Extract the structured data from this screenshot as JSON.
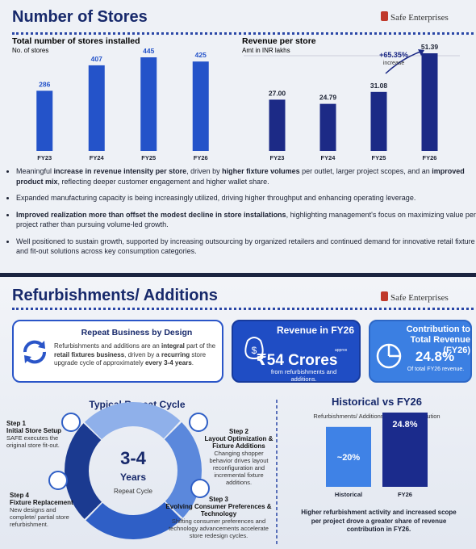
{
  "slide1": {
    "title": "Number of Stores",
    "logo": "Safe Enterprises"
  },
  "chart_data": [
    {
      "type": "bar",
      "title": "Total number of stores installed",
      "subtitle": "No. of stores",
      "categories": [
        "FY23",
        "FY24",
        "FY25",
        "FY26"
      ],
      "values": [
        286,
        407,
        445,
        425
      ],
      "color": "#2453c9"
    },
    {
      "type": "bar",
      "title": "Revenue per store",
      "subtitle": "Amt in INR lakhs",
      "categories": [
        "FY23",
        "FY24",
        "FY25",
        "FY26"
      ],
      "values": [
        27.0,
        24.79,
        31.08,
        51.39
      ],
      "value_labels": [
        "27.00",
        "24.79",
        "31.08",
        "51.39"
      ],
      "color": "#1c2a86",
      "annotation": {
        "text": "+65.35%",
        "subtext": "increase"
      }
    },
    {
      "type": "bar",
      "title": "Historical vs FY26",
      "subtitle": "Refurbishments/ Additions revenue contribution",
      "categories": [
        "Historical",
        "FY26"
      ],
      "values": [
        20,
        24.8
      ],
      "value_labels": [
        "~20%",
        "24.8%"
      ],
      "colors": [
        "#3f82e6",
        "#1b2b8c"
      ],
      "note": "Higher refurbishment activity and increased scope per project drove a greater share of revenue contribution in FY26."
    }
  ],
  "bullets": [
    [
      {
        "text": "Meaningful ",
        "bold": false
      },
      {
        "text": "increase in revenue intensity per store",
        "bold": true
      },
      {
        "text": ", driven by ",
        "bold": false
      },
      {
        "text": "higher fixture volumes",
        "bold": true
      },
      {
        "text": " per outlet, larger project scopes, and an ",
        "bold": false
      },
      {
        "text": "improved product mix",
        "bold": true
      },
      {
        "text": ", reflecting deeper customer engagement and higher wallet share.",
        "bold": false
      }
    ],
    [
      {
        "text": "Expanded manufacturing capacity is being increasingly utilized, driving higher throughput and enhancing operating leverage.",
        "bold": false
      }
    ],
    [
      {
        "text": "Improved realization more than offset the modest decline in store installations",
        "bold": true
      },
      {
        "text": ", highlighting management's focus on maximizing value per project rather than pursuing volume-led growth.",
        "bold": false
      }
    ],
    [
      {
        "text": "Well positioned to sustain growth, supported by increasing outsourcing by organized retailers and continued demand for innovative retail fixture and fit-out solutions across key consumption categories.",
        "bold": false
      }
    ]
  ],
  "slide2": {
    "title": "Refurbishments/ Additions",
    "logo": "Safe Enterprises"
  },
  "card_repeat": {
    "title": "Repeat Business by Design",
    "text": [
      {
        "text": "Refurbishments and additions are an ",
        "bold": false
      },
      {
        "text": "integral",
        "bold": true
      },
      {
        "text": " part of the ",
        "bold": false
      },
      {
        "text": "retail fixtures business",
        "bold": true
      },
      {
        "text": ", driven by a ",
        "bold": false
      },
      {
        "text": "recurring",
        "bold": true
      },
      {
        "text": " store upgrade cycle of approximately ",
        "bold": false
      },
      {
        "text": "every 3-4 years",
        "bold": true
      },
      {
        "text": ".",
        "bold": false
      }
    ]
  },
  "card_revenue": {
    "title": "Revenue in FY26",
    "amount": "₹54 Crores",
    "note": "approx",
    "text": "from refurbishments and additions."
  },
  "card_contribution": {
    "title": "Contribution to Total Revenue (FY26)",
    "amount": "24.8%",
    "text": "Of total FY26 revenue."
  },
  "cycle": {
    "title": "Typical Repeat Cycle",
    "center_value": "3-4",
    "center_unit": "Years",
    "center_label": "Repeat Cycle",
    "steps": [
      {
        "step": "Step 1",
        "title": "Initial Store Setup",
        "text": "SAFE executes the original store fit-out."
      },
      {
        "step": "Step 2",
        "title": "Layout Optimization & Fixture Additions",
        "text": "Changing shopper behavior drives layout reconfiguration and incremental fixture additions."
      },
      {
        "step": "Step 3",
        "title": "Evolving Consumer Preferences & Technology",
        "text": "Shifting consumer preferences and technology advancements accelerate store redesign cycles."
      },
      {
        "step": "Step 4",
        "title": "Fixture Replacement",
        "text": "New designs and complete/ partial store refurbishment."
      }
    ]
  }
}
